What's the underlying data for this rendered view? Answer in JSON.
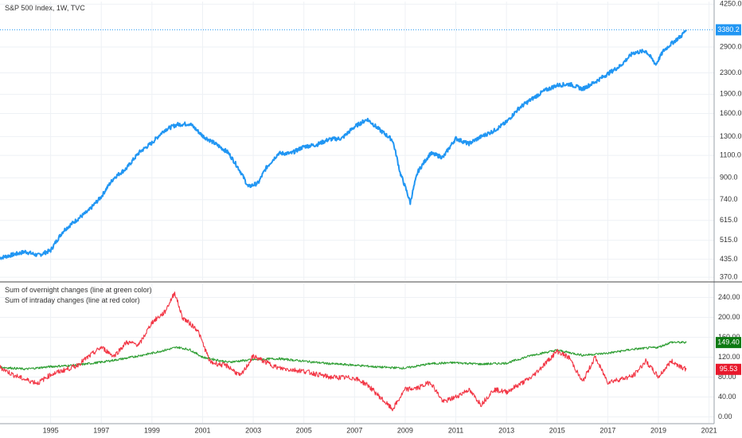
{
  "chart_data": [
    {
      "type": "line",
      "title": "S&P 500 Index, 1W, TVC",
      "yscale": "log",
      "ylim": [
        370,
        4250
      ],
      "y_ticks": [
        "4250.0",
        "3380.2",
        "2900.0",
        "2300.0",
        "1900.0",
        "1600.0",
        "1300.0",
        "1100.0",
        "900.0",
        "740.0",
        "615.0",
        "515.0",
        "435.0",
        "370.0"
      ],
      "grid": true,
      "last_value_label": "3380.2",
      "series": [
        {
          "color": "#2196f3",
          "points": [
            [
              1993.0,
              440
            ],
            [
              1994.0,
              465
            ],
            [
              1994.5,
              450
            ],
            [
              1995.0,
              470
            ],
            [
              1995.5,
              560
            ],
            [
              1996.0,
              615
            ],
            [
              1996.5,
              670
            ],
            [
              1997.0,
              760
            ],
            [
              1997.5,
              900
            ],
            [
              1998.0,
              980
            ],
            [
              1998.5,
              1130
            ],
            [
              1999.0,
              1230
            ],
            [
              1999.5,
              1380
            ],
            [
              2000.0,
              1450
            ],
            [
              2000.5,
              1460
            ],
            [
              2001.0,
              1310
            ],
            [
              2001.5,
              1220
            ],
            [
              2002.0,
              1130
            ],
            [
              2002.5,
              950
            ],
            [
              2002.8,
              830
            ],
            [
              2003.2,
              860
            ],
            [
              2003.5,
              980
            ],
            [
              2004.0,
              1120
            ],
            [
              2004.5,
              1120
            ],
            [
              2005.0,
              1190
            ],
            [
              2005.5,
              1210
            ],
            [
              2006.0,
              1270
            ],
            [
              2006.5,
              1280
            ],
            [
              2007.0,
              1420
            ],
            [
              2007.5,
              1520
            ],
            [
              2008.0,
              1380
            ],
            [
              2008.5,
              1260
            ],
            [
              2008.8,
              940
            ],
            [
              2009.2,
              720
            ],
            [
              2009.5,
              950
            ],
            [
              2010.0,
              1120
            ],
            [
              2010.5,
              1080
            ],
            [
              2011.0,
              1280
            ],
            [
              2011.5,
              1220
            ],
            [
              2012.0,
              1300
            ],
            [
              2012.5,
              1370
            ],
            [
              2013.0,
              1480
            ],
            [
              2013.5,
              1680
            ],
            [
              2014.0,
              1820
            ],
            [
              2014.5,
              1960
            ],
            [
              2015.0,
              2060
            ],
            [
              2015.5,
              2080
            ],
            [
              2016.0,
              1990
            ],
            [
              2016.5,
              2120
            ],
            [
              2017.0,
              2280
            ],
            [
              2017.5,
              2450
            ],
            [
              2018.0,
              2750
            ],
            [
              2018.5,
              2800
            ],
            [
              2018.9,
              2480
            ],
            [
              2019.2,
              2800
            ],
            [
              2019.5,
              2980
            ],
            [
              2019.9,
              3200
            ],
            [
              2020.1,
              3380
            ]
          ]
        }
      ]
    },
    {
      "type": "line",
      "legend": [
        "Sum of overnight changes (line at green color)",
        "Sum of intraday changes (line at red color)"
      ],
      "ylim": [
        0,
        260
      ],
      "y_ticks": [
        "240.00",
        "200.00",
        "160.00",
        "120.00",
        "80.00",
        "40.00",
        "0.00"
      ],
      "x_ticks": [
        "1995",
        "1997",
        "1999",
        "2001",
        "2003",
        "2005",
        "2007",
        "2009",
        "2011",
        "2013",
        "2015",
        "2017",
        "2019",
        "2021"
      ],
      "x_range": [
        1993.0,
        2021.2
      ],
      "grid": true,
      "series": [
        {
          "color": "#2e9e33",
          "last_value_label": "149.40",
          "points": [
            [
              1993.0,
              100
            ],
            [
              1994.0,
              96
            ],
            [
              1995.0,
              101
            ],
            [
              1996.0,
              104
            ],
            [
              1997.0,
              110
            ],
            [
              1998.0,
              118
            ],
            [
              1999.0,
              128
            ],
            [
              2000.0,
              140
            ],
            [
              2000.5,
              135
            ],
            [
              2001.0,
              120
            ],
            [
              2002.0,
              110
            ],
            [
              2003.0,
              115
            ],
            [
              2004.0,
              117
            ],
            [
              2005.0,
              112
            ],
            [
              2006.0,
              107
            ],
            [
              2007.0,
              104
            ],
            [
              2008.0,
              100
            ],
            [
              2009.0,
              98
            ],
            [
              2010.0,
              107
            ],
            [
              2011.0,
              109
            ],
            [
              2012.0,
              106
            ],
            [
              2013.0,
              108
            ],
            [
              2014.0,
              124
            ],
            [
              2015.0,
              134
            ],
            [
              2016.0,
              124
            ],
            [
              2017.0,
              128
            ],
            [
              2018.0,
              136
            ],
            [
              2019.0,
              140
            ],
            [
              2019.5,
              150
            ],
            [
              2020.1,
              149.4
            ]
          ]
        },
        {
          "color": "#f23645",
          "last_value_label": "95.53",
          "points": [
            [
              1993.0,
              100
            ],
            [
              1993.5,
              85
            ],
            [
              1994.0,
              75
            ],
            [
              1994.5,
              68
            ],
            [
              1995.0,
              85
            ],
            [
              1996.0,
              102
            ],
            [
              1997.0,
              140
            ],
            [
              1997.5,
              122
            ],
            [
              1998.0,
              150
            ],
            [
              1998.5,
              145
            ],
            [
              1999.0,
              190
            ],
            [
              1999.5,
              210
            ],
            [
              1999.9,
              250
            ],
            [
              2000.2,
              200
            ],
            [
              2000.8,
              175
            ],
            [
              2001.3,
              110
            ],
            [
              2002.0,
              102
            ],
            [
              2002.5,
              82
            ],
            [
              2003.0,
              122
            ],
            [
              2004.0,
              98
            ],
            [
              2005.0,
              92
            ],
            [
              2006.0,
              80
            ],
            [
              2007.0,
              78
            ],
            [
              2007.5,
              65
            ],
            [
              2008.0,
              40
            ],
            [
              2008.5,
              15
            ],
            [
              2009.0,
              55
            ],
            [
              2009.5,
              58
            ],
            [
              2010.0,
              70
            ],
            [
              2010.5,
              30
            ],
            [
              2011.0,
              40
            ],
            [
              2011.5,
              55
            ],
            [
              2012.0,
              25
            ],
            [
              2012.5,
              55
            ],
            [
              2013.0,
              50
            ],
            [
              2014.0,
              80
            ],
            [
              2015.0,
              132
            ],
            [
              2015.5,
              118
            ],
            [
              2016.0,
              70
            ],
            [
              2016.5,
              120
            ],
            [
              2017.0,
              70
            ],
            [
              2018.0,
              82
            ],
            [
              2018.5,
              112
            ],
            [
              2019.0,
              80
            ],
            [
              2019.5,
              112
            ],
            [
              2020.1,
              95.53
            ]
          ]
        }
      ]
    }
  ]
}
